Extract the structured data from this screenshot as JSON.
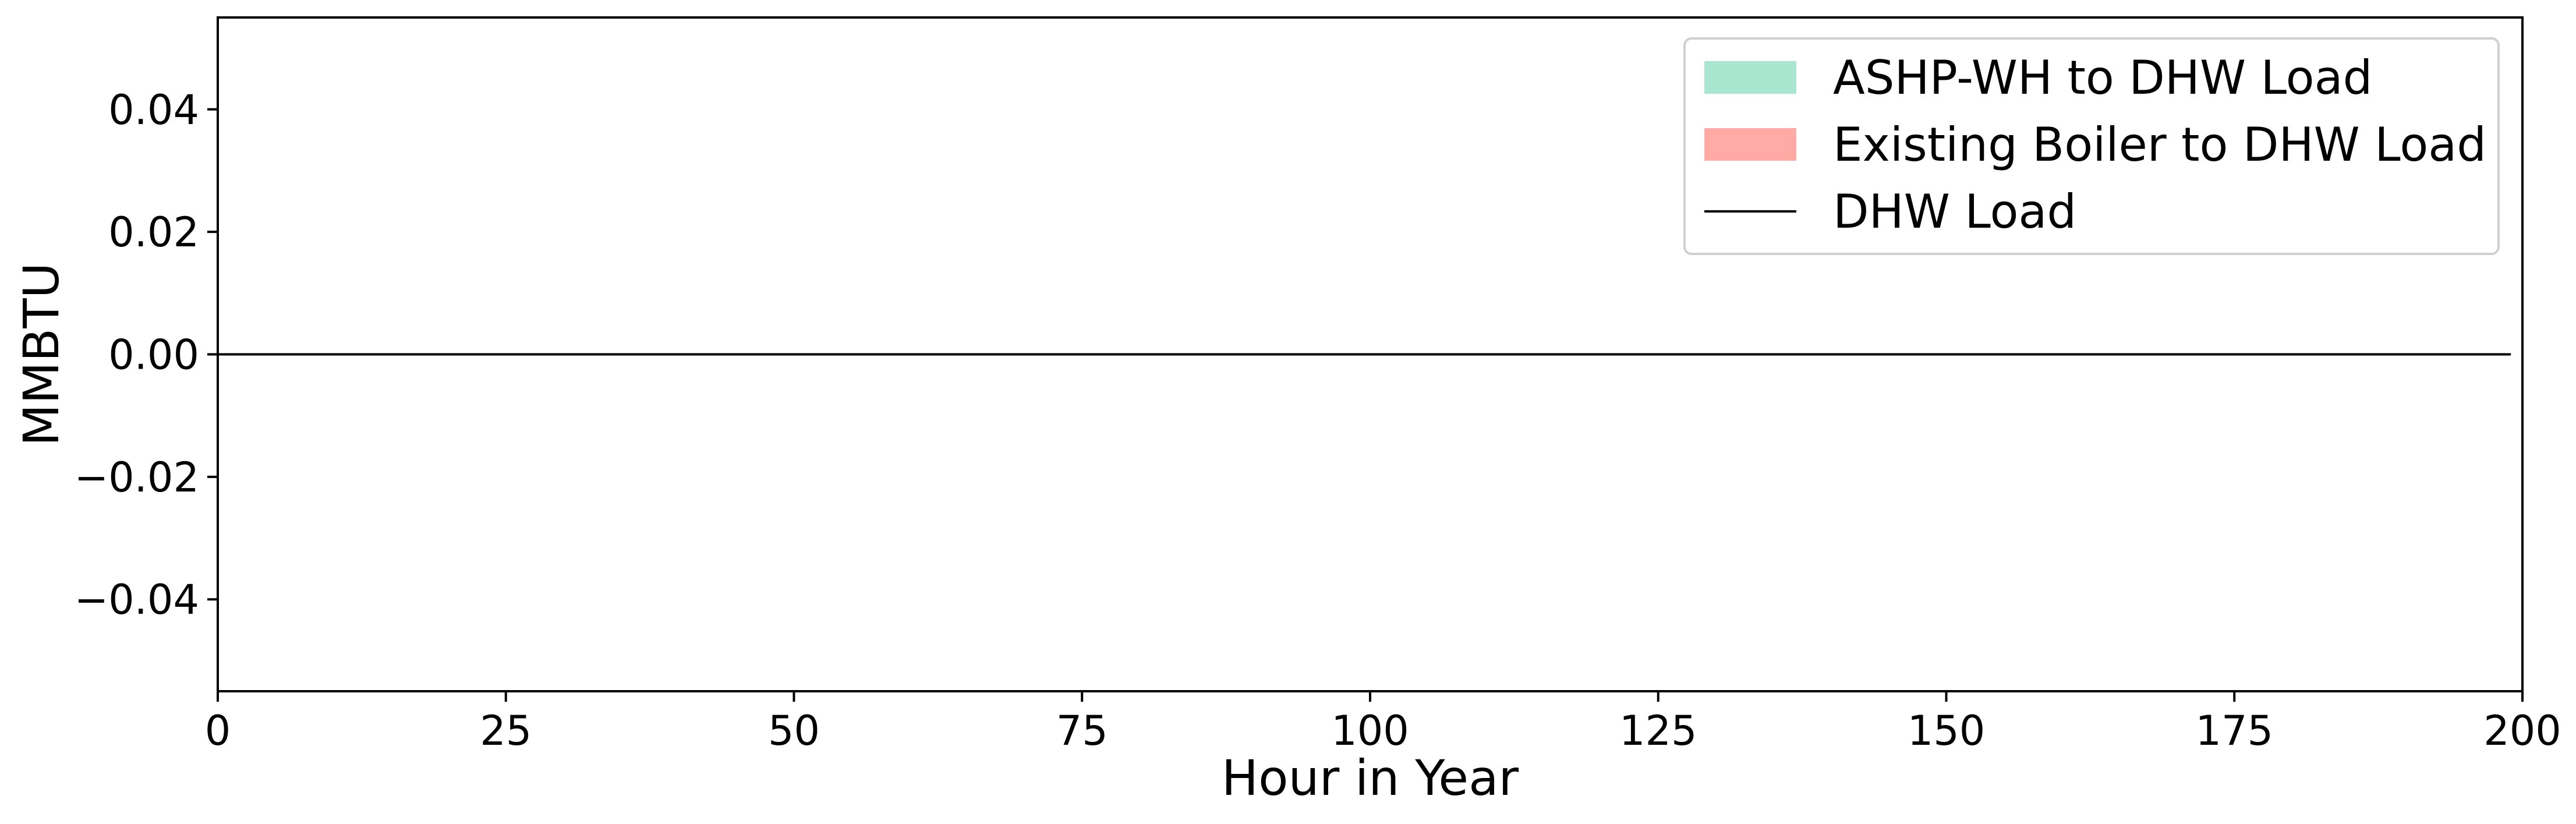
{
  "chart_data": {
    "type": "area",
    "title": "",
    "xlabel": "Hour in Year",
    "ylabel": "MMBTU",
    "xlim": [
      0,
      200
    ],
    "ylim": [
      -0.055,
      0.055
    ],
    "x_ticks": [
      0,
      25,
      50,
      75,
      100,
      125,
      150,
      175,
      200
    ],
    "x_tick_labels": [
      "0",
      "25",
      "50",
      "75",
      "100",
      "125",
      "150",
      "175",
      "200"
    ],
    "y_ticks": [
      0.04,
      0.02,
      0.0,
      -0.02,
      -0.04
    ],
    "y_tick_labels": [
      "0.04",
      "0.02",
      "0.00",
      "−0.02",
      "−0.04"
    ],
    "grid": false,
    "legend_position": "top-right",
    "series": [
      {
        "name": "ASHP-WH to DHW Load",
        "kind": "area",
        "color": "#a8e6cf",
        "x": [
          0,
          199
        ],
        "values": [
          0,
          0
        ]
      },
      {
        "name": "Existing Boiler to DHW Load",
        "kind": "area",
        "color": "#ffaaa5",
        "x": [
          0,
          199
        ],
        "values": [
          0,
          0
        ]
      },
      {
        "name": "DHW Load",
        "kind": "line",
        "color": "#000000",
        "x": [
          0,
          199
        ],
        "values": [
          0,
          0
        ]
      }
    ]
  }
}
